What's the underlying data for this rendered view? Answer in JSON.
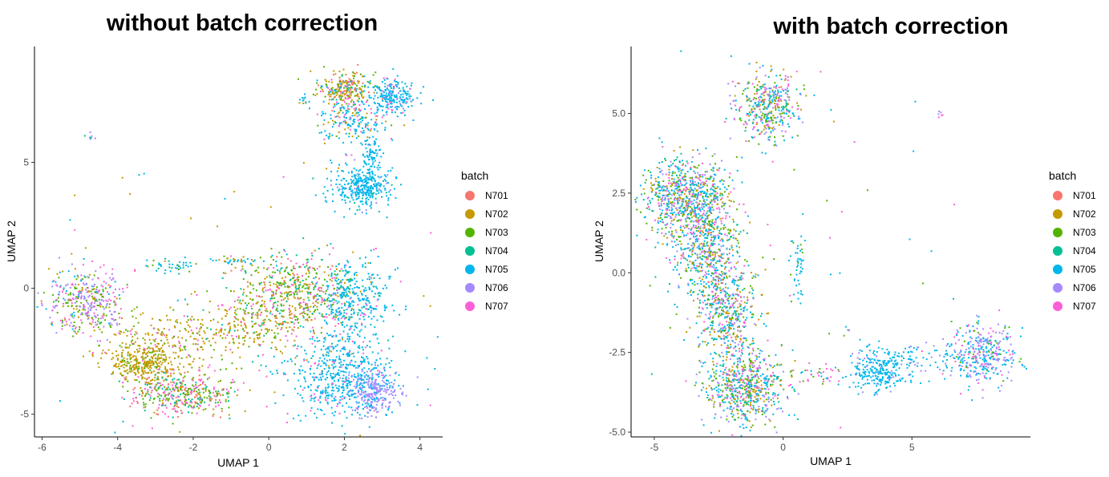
{
  "chart_data": [
    {
      "type": "scatter",
      "title": "without batch correction",
      "xlabel": "UMAP 1",
      "ylabel": "UMAP 2",
      "xlim": [
        -6.2,
        4.6
      ],
      "ylim": [
        -5.9,
        9.6
      ],
      "xticks": [
        -6,
        -4,
        -2,
        0,
        2,
        4
      ],
      "yticks": [
        -5,
        0,
        5
      ],
      "xtick_labels": [
        "-6",
        "-4",
        "-2",
        "0",
        "2",
        "4"
      ],
      "ytick_labels": [
        "-5",
        "0",
        "5"
      ],
      "grid": false,
      "legend_title": "batch",
      "legend_position": "right",
      "clusters": [
        {
          "cx": 2.0,
          "cy": 7.9,
          "sx": 0.35,
          "sy": 0.35,
          "n": 260,
          "mix": {
            "N702": 0.35,
            "N703": 0.2,
            "N705": 0.2,
            "N701": 0.15,
            "N707": 0.1
          }
        },
        {
          "cx": 3.2,
          "cy": 7.6,
          "sx": 0.35,
          "sy": 0.35,
          "n": 240,
          "mix": {
            "N705": 0.8,
            "N706": 0.1,
            "N707": 0.1
          }
        },
        {
          "cx": 2.2,
          "cy": 6.6,
          "sx": 0.5,
          "sy": 0.45,
          "n": 180,
          "mix": {
            "N705": 0.6,
            "N702": 0.15,
            "N703": 0.1,
            "N707": 0.15
          }
        },
        {
          "cx": 2.7,
          "cy": 5.2,
          "sx": 0.12,
          "sy": 0.6,
          "n": 90,
          "mix": {
            "N705": 1.0
          }
        },
        {
          "cx": 2.5,
          "cy": 4.0,
          "sx": 0.4,
          "sy": 0.4,
          "n": 320,
          "mix": {
            "N705": 0.9,
            "N704": 0.05,
            "N706": 0.05
          }
        },
        {
          "cx": -4.8,
          "cy": -0.5,
          "sx": 0.5,
          "sy": 0.6,
          "n": 380,
          "mix": {
            "N706": 0.3,
            "N707": 0.25,
            "N703": 0.25,
            "N702": 0.1,
            "N705": 0.1
          }
        },
        {
          "cx": -3.3,
          "cy": -3.0,
          "sx": 0.45,
          "sy": 0.35,
          "n": 320,
          "mix": {
            "N702": 0.85,
            "N703": 0.15
          }
        },
        {
          "cx": -2.3,
          "cy": -4.2,
          "sx": 0.7,
          "sy": 0.4,
          "n": 420,
          "mix": {
            "N707": 0.25,
            "N703": 0.25,
            "N704": 0.2,
            "N702": 0.15,
            "N701": 0.15
          }
        },
        {
          "cx": -2.6,
          "cy": -2.0,
          "sx": 0.9,
          "sy": 0.55,
          "n": 220,
          "mix": {
            "N702": 0.6,
            "N703": 0.2,
            "N707": 0.2
          }
        },
        {
          "cx": -0.5,
          "cy": -1.5,
          "sx": 0.9,
          "sy": 0.7,
          "n": 260,
          "mix": {
            "N702": 0.6,
            "N703": 0.2,
            "N704": 0.1,
            "N707": 0.1
          }
        },
        {
          "cx": 0.7,
          "cy": -0.2,
          "sx": 0.75,
          "sy": 0.75,
          "n": 520,
          "mix": {
            "N703": 0.3,
            "N702": 0.25,
            "N704": 0.2,
            "N707": 0.15,
            "N701": 0.1
          }
        },
        {
          "cx": 2.2,
          "cy": -0.5,
          "sx": 0.5,
          "sy": 0.8,
          "n": 320,
          "mix": {
            "N705": 0.8,
            "N707": 0.1,
            "N704": 0.1
          }
        },
        {
          "cx": 1.9,
          "cy": -3.5,
          "sx": 0.7,
          "sy": 0.9,
          "n": 560,
          "mix": {
            "N705": 0.9,
            "N707": 0.1
          }
        },
        {
          "cx": 2.8,
          "cy": -4.1,
          "sx": 0.3,
          "sy": 0.45,
          "n": 220,
          "mix": {
            "N706": 0.85,
            "N705": 0.15
          }
        },
        {
          "cx": -2.5,
          "cy": 0.9,
          "sx": 0.35,
          "sy": 0.12,
          "n": 40,
          "mix": {
            "N705": 0.6,
            "N703": 0.2,
            "N704": 0.2
          }
        },
        {
          "cx": -1.0,
          "cy": 1.1,
          "sx": 0.35,
          "sy": 0.1,
          "n": 35,
          "mix": {
            "N705": 0.5,
            "N702": 0.3,
            "N703": 0.2
          }
        },
        {
          "cx": -4.7,
          "cy": 6.0,
          "sx": 0.06,
          "sy": 0.06,
          "n": 8,
          "mix": {
            "N706": 0.5,
            "N704": 0.5
          }
        },
        {
          "cx": 1.0,
          "cy": 7.5,
          "sx": 0.12,
          "sy": 0.08,
          "n": 12,
          "mix": {
            "N705": 0.7,
            "N702": 0.3
          }
        },
        {
          "cx": -0.5,
          "cy": 0,
          "sx": 4.2,
          "sy": 4.0,
          "n": 120,
          "mix": {
            "N702": 0.3,
            "N705": 0.4,
            "N707": 0.3
          }
        }
      ]
    },
    {
      "type": "scatter",
      "title": "with batch correction",
      "xlabel": "UMAP 1",
      "ylabel": "UMAP 2",
      "xlim": [
        -5.9,
        9.6
      ],
      "ylim": [
        -5.15,
        7.1
      ],
      "xticks": [
        -5,
        0,
        5
      ],
      "yticks": [
        -5.0,
        -2.5,
        0.0,
        2.5,
        5.0
      ],
      "xtick_labels": [
        "-5",
        "0",
        "5"
      ],
      "ytick_labels": [
        "-5.0",
        "-2.5",
        "0.0",
        "2.5",
        "5.0"
      ],
      "grid": false,
      "legend_title": "batch",
      "legend_position": "right",
      "clusters": [
        {
          "cx": -0.6,
          "cy": 5.2,
          "sx": 0.6,
          "sy": 0.5,
          "n": 420,
          "mix": {
            "N705": 0.25,
            "N703": 0.2,
            "N706": 0.15,
            "N707": 0.15,
            "N702": 0.15,
            "N704": 0.1
          }
        },
        {
          "cx": -3.8,
          "cy": 2.4,
          "sx": 0.8,
          "sy": 0.6,
          "n": 750,
          "mix": {
            "N705": 0.3,
            "N703": 0.15,
            "N702": 0.15,
            "N706": 0.15,
            "N707": 0.15,
            "N704": 0.1
          }
        },
        {
          "cx": -3.0,
          "cy": 0.8,
          "sx": 0.7,
          "sy": 0.7,
          "n": 500,
          "mix": {
            "N705": 0.3,
            "N703": 0.15,
            "N702": 0.15,
            "N706": 0.15,
            "N707": 0.15,
            "N704": 0.1
          }
        },
        {
          "cx": -2.2,
          "cy": -1.2,
          "sx": 0.6,
          "sy": 0.8,
          "n": 500,
          "mix": {
            "N705": 0.3,
            "N703": 0.15,
            "N702": 0.15,
            "N706": 0.15,
            "N707": 0.15,
            "N704": 0.1
          }
        },
        {
          "cx": -1.5,
          "cy": -3.6,
          "sx": 0.75,
          "sy": 0.55,
          "n": 650,
          "mix": {
            "N705": 0.3,
            "N703": 0.15,
            "N702": 0.15,
            "N706": 0.15,
            "N707": 0.15,
            "N704": 0.1
          }
        },
        {
          "cx": 0.6,
          "cy": 0.2,
          "sx": 0.15,
          "sy": 0.5,
          "n": 45,
          "mix": {
            "N705": 0.7,
            "N703": 0.3
          }
        },
        {
          "cx": 3.8,
          "cy": -3.1,
          "sx": 0.55,
          "sy": 0.35,
          "n": 260,
          "mix": {
            "N705": 0.9,
            "N706": 0.1
          }
        },
        {
          "cx": 7.8,
          "cy": -2.6,
          "sx": 0.6,
          "sy": 0.5,
          "n": 340,
          "mix": {
            "N705": 0.45,
            "N706": 0.3,
            "N707": 0.15,
            "N703": 0.1
          }
        },
        {
          "cx": 5.5,
          "cy": -2.7,
          "sx": 1.3,
          "sy": 0.25,
          "n": 90,
          "mix": {
            "N705": 0.85,
            "N706": 0.15
          }
        },
        {
          "cx": 1.3,
          "cy": -3.2,
          "sx": 0.5,
          "sy": 0.2,
          "n": 40,
          "mix": {
            "N707": 0.4,
            "N705": 0.3,
            "N703": 0.3
          }
        },
        {
          "cx": 6.1,
          "cy": 5.0,
          "sx": 0.07,
          "sy": 0.05,
          "n": 6,
          "mix": {
            "N706": 0.5,
            "N707": 0.5
          }
        },
        {
          "cx": 0,
          "cy": 0,
          "sx": 3.5,
          "sy": 3.5,
          "n": 80,
          "mix": {
            "N705": 0.4,
            "N703": 0.3,
            "N707": 0.3
          }
        }
      ]
    }
  ],
  "legend": {
    "title": "batch",
    "items": [
      {
        "label": "N701",
        "color": "#F8766D"
      },
      {
        "label": "N702",
        "color": "#C49A00"
      },
      {
        "label": "N703",
        "color": "#53B400"
      },
      {
        "label": "N704",
        "color": "#00C094"
      },
      {
        "label": "N705",
        "color": "#00B6EB"
      },
      {
        "label": "N706",
        "color": "#A58AFF"
      },
      {
        "label": "N707",
        "color": "#FB61D7"
      }
    ]
  }
}
